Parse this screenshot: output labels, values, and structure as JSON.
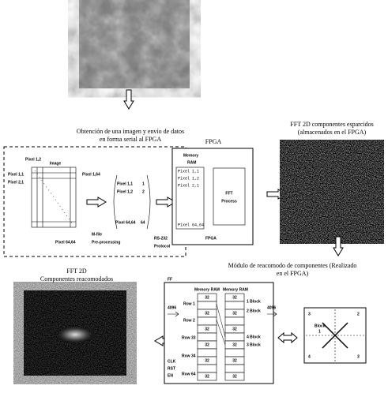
{
  "acquisition": {
    "caption": [
      "Obtención de una imagen y envío de datos",
      "en forma serial al FPGA"
    ],
    "image_label": "Image",
    "pixel_labels": [
      "Pixel 1,2",
      "Pixel 1,1",
      "Pixel 2,1",
      "Pixel 1,64",
      "Pixel 64,64"
    ],
    "vector": [
      [
        "Pixel 1,1",
        "1"
      ],
      [
        "Pixel 1,2",
        "2"
      ],
      [
        "Pixel 64,64",
        "64"
      ]
    ],
    "mfile": [
      "M-file",
      "Pre-processing"
    ],
    "protocol": [
      "RS-232",
      "Protocol"
    ]
  },
  "fpga": {
    "title": "FPGA",
    "memory": [
      "Memory",
      "RAM"
    ],
    "ram_rows": [
      "Pixel 1,1",
      "Pixel 1,2",
      "Pixel 2,1",
      "Pixel 64,64"
    ],
    "process": [
      "FFT",
      "Process"
    ],
    "footer": "FPGA"
  },
  "sparse": {
    "caption": [
      "FFT  2D componentes esparcidos",
      "(almacenados en el FPGA)"
    ]
  },
  "rearrange": {
    "caption": [
      "Módulo de reacomodo de componentes (Realizado",
      "en el FPGA)"
    ],
    "title": "FF",
    "memories": [
      "Memory RAM",
      "Memory RAM"
    ],
    "rows": [
      "Row 1",
      "Row 2",
      "Row 33",
      "Row 34",
      "Row 64"
    ],
    "cell": "32",
    "blocks": [
      "1 Block",
      "2 Block",
      "4 Block",
      "3 Block"
    ],
    "input": "4096",
    "output": "4096",
    "signals": [
      "CLK",
      "RST",
      "EN"
    ]
  },
  "quadrants": {
    "block": "Block",
    "center": "1",
    "corners": [
      "3",
      "2",
      "4",
      "3"
    ]
  },
  "result": {
    "caption": [
      "FFT  2D",
      "Componentes reacomodados"
    ]
  }
}
